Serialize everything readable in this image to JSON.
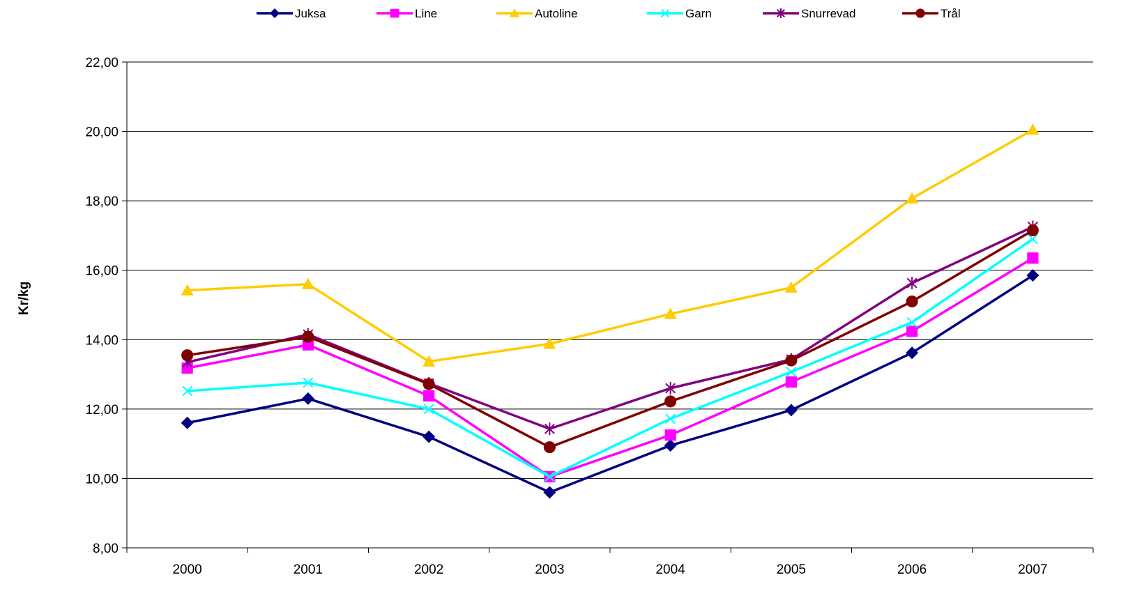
{
  "chart_data": {
    "type": "line",
    "categories": [
      "2000",
      "2001",
      "2002",
      "2003",
      "2004",
      "2005",
      "2006",
      "2007"
    ],
    "ylabel": "Kr/kg",
    "xlabel": "",
    "ylim": [
      8,
      22
    ],
    "ytick_step": 2,
    "ytick_labels": [
      "8,00",
      "10,00",
      "12,00",
      "14,00",
      "16,00",
      "18,00",
      "20,00",
      "22,00"
    ],
    "grid": "horizontal",
    "legend_position": "top",
    "series": [
      {
        "name": "Juksa",
        "color": "#000080",
        "marker": "diamond",
        "values": [
          11.6,
          12.3,
          11.2,
          9.6,
          10.95,
          11.97,
          13.62,
          15.85
        ]
      },
      {
        "name": "Line",
        "color": "#FF00FF",
        "marker": "square",
        "values": [
          13.18,
          13.85,
          12.38,
          10.05,
          11.25,
          12.78,
          14.24,
          16.35
        ]
      },
      {
        "name": "Autoline",
        "color": "#FFCC00",
        "marker": "triangle",
        "values": [
          15.42,
          15.6,
          13.37,
          13.88,
          14.74,
          15.5,
          18.07,
          20.05
        ]
      },
      {
        "name": "Garn",
        "color": "#00FFFF",
        "marker": "x",
        "values": [
          12.52,
          12.76,
          12.0,
          10.05,
          11.72,
          13.07,
          14.5,
          16.9
        ]
      },
      {
        "name": "Snurrevad",
        "color": "#800080",
        "marker": "star",
        "values": [
          13.35,
          14.15,
          12.74,
          11.43,
          12.6,
          13.43,
          15.63,
          17.25
        ]
      },
      {
        "name": "Trål",
        "color": "#800000",
        "marker": "circle",
        "values": [
          13.55,
          14.08,
          12.72,
          10.9,
          12.22,
          13.4,
          15.1,
          17.15
        ]
      }
    ]
  }
}
